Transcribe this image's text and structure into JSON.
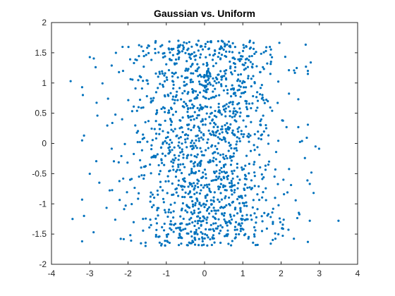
{
  "chart_data": {
    "type": "scatter",
    "title": "Gaussian vs. Uniform",
    "xlabel": "",
    "ylabel": "",
    "xlim": [
      -4,
      4
    ],
    "ylim": [
      -2,
      2
    ],
    "xticks": [
      "-4",
      "-3",
      "-2",
      "-1",
      "0",
      "1",
      "2",
      "3",
      "4"
    ],
    "yticks": [
      "-2",
      "-1.5",
      "-1",
      "-0.5",
      "0",
      "0.5",
      "1",
      "1.5",
      "2"
    ],
    "grid": false,
    "marker_color": "#0072BD",
    "series": [
      {
        "x_distribution": "gaussian",
        "x_mean": 0,
        "x_std": 1,
        "y_distribution": "uniform",
        "y_range": [
          -1.7,
          1.7
        ],
        "count": 1500,
        "points_sample": [
          [
            -3.5,
            1.03
          ],
          [
            -3.2,
            0.93
          ],
          [
            -3.18,
            0.8
          ],
          [
            -3.15,
            0.13
          ],
          [
            -3.2,
            0.05
          ],
          [
            -2.8,
            0.46
          ],
          [
            -3.45,
            -1.25
          ],
          [
            -3.15,
            -1.2
          ],
          [
            -3.2,
            -1.62
          ],
          [
            -2.9,
            -1.47
          ],
          [
            -3.2,
            -0.93
          ],
          [
            -2.75,
            -0.65
          ],
          [
            3.5,
            -1.28
          ],
          [
            2.9,
            -0.05
          ],
          [
            2.75,
            -1.28
          ],
          [
            2.85,
            -0.82
          ],
          [
            2.75,
            -0.67
          ],
          [
            2.7,
            -1.63
          ],
          [
            2.7,
            1.2
          ],
          [
            2.7,
            1.15
          ],
          [
            2.65,
            1.27
          ],
          [
            2.7,
            0.31
          ],
          [
            2.45,
            0.73
          ],
          [
            2.45,
            0.27
          ]
        ]
      }
    ]
  }
}
